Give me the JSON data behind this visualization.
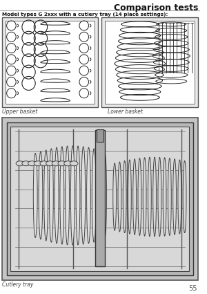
{
  "title": "Comparison tests",
  "subtitle": "Model types G 2xxx with a cutlery tray (14 place settings):",
  "label_upper": "Upper basket",
  "label_lower": "Lower basket",
  "label_cutlery": "Cutlery tray",
  "page_number": "55",
  "line_color": "#222222",
  "box_bg": "#f5f5f5",
  "inner_bg": "#ffffff",
  "tray_bg": "#c0c0c0"
}
